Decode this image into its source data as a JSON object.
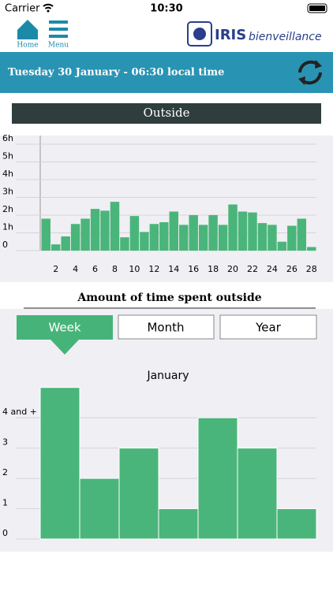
{
  "status_bar": {
    "carrier": "Carrier",
    "time": "10:30"
  },
  "header": {
    "home": "Home",
    "menu": "Menu",
    "logo": "IRIS",
    "logo_sub": "bienveillance"
  },
  "banner": {
    "date": "Tuesday 30 January - 06:30 local time"
  },
  "section": {
    "title": "Outside",
    "caption": "Amount of time spent outside"
  },
  "tabs": [
    "Week",
    "Month",
    "Year"
  ],
  "chart_data": [
    {
      "type": "bar",
      "color": "#4ab57a",
      "grid": true,
      "categories": [
        null,
        "2",
        null,
        "4",
        null,
        "6",
        null,
        "8",
        null,
        "10",
        null,
        "12",
        null,
        "14",
        null,
        "16",
        null,
        "18",
        null,
        "20",
        null,
        "22",
        null,
        "24",
        null,
        "26",
        null,
        "28"
      ],
      "values": [
        1.8,
        0.35,
        0.8,
        1.5,
        1.8,
        2.35,
        2.25,
        2.75,
        0.75,
        1.95,
        1.05,
        1.5,
        1.6,
        2.2,
        1.45,
        2.0,
        1.45,
        2.0,
        1.45,
        2.6,
        2.2,
        2.15,
        1.55,
        1.45,
        0.5,
        1.4,
        1.8,
        0.2
      ],
      "ylim": [
        0,
        6
      ],
      "yticks": [
        0,
        {
          "value": 1,
          "label": "1h"
        },
        {
          "value": 2,
          "label": "2h"
        },
        {
          "value": 3,
          "label": "3h"
        },
        {
          "value": 4,
          "label": "4h"
        },
        {
          "value": 5,
          "label": "5h"
        },
        {
          "value": 6,
          "label": "6h"
        }
      ]
    },
    {
      "type": "bar",
      "color": "#4ab57a",
      "grid": true,
      "title": "January",
      "values": [
        5,
        2,
        3,
        1,
        4,
        3,
        1
      ],
      "ylim": [
        0,
        5.2
      ],
      "yticks": [
        0,
        1,
        2,
        3,
        {
          "value": 4,
          "label": "4 and +"
        }
      ]
    }
  ]
}
